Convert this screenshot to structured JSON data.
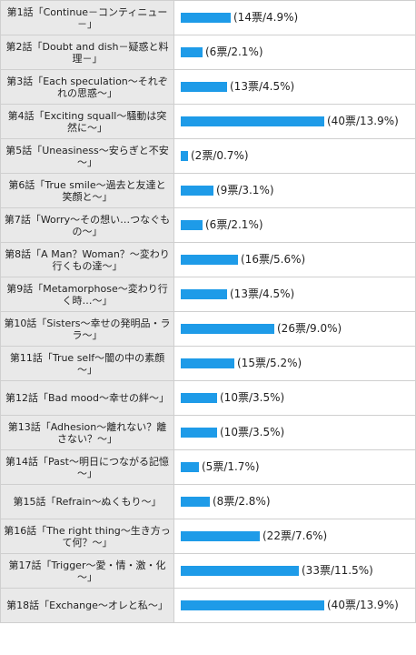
{
  "chart_data": {
    "type": "bar",
    "orientation": "horizontal",
    "title": "",
    "xlabel": "",
    "ylabel": "",
    "xlim": [
      0,
      40
    ],
    "grid": false,
    "legend": "none",
    "bar_color": "#1e9be8",
    "categories": [
      "第1話「Continue－コンティニュー－」",
      "第2話「Doubt and dish－疑惑と料理－」",
      "第3話「Each speculation～それぞれの思惑～」",
      "第4話「Exciting squall～騒動は突然に～」",
      "第5話「Uneasiness～安らぎと不安～」",
      "第6話「True smile～過去と友達と笑顔と～」",
      "第7話「Worry～その想い…つなぐもの～」",
      "第8話「A Man？Woman？～変わり行くもの達～」",
      "第9話「Metamorphose～変わり行く時…～」",
      "第10話「Sisters～幸せの発明品・ララ～」",
      "第11話「True self～闇の中の素顔～」",
      "第12話「Bad mood～幸せの絆～」",
      "第13話「Adhesion～離れない？離さない？～」",
      "第14話「Past～明日につながる記憶～」",
      "第15話「Refrain～ぬくもり～」",
      "第16話「The right thing～生き方って何？～」",
      "第17話「Trigger～愛・情・激・化～」",
      "第18話「Exchange～オレと私～」"
    ],
    "values": [
      14,
      6,
      13,
      40,
      2,
      9,
      6,
      16,
      13,
      26,
      15,
      10,
      10,
      5,
      8,
      22,
      33,
      40
    ],
    "value_labels": [
      "(14票/4.9%)",
      "(6票/2.1%)",
      "(13票/4.5%)",
      "(40票/13.9%)",
      "(2票/0.7%)",
      "(9票/3.1%)",
      "(6票/2.1%)",
      "(16票/5.6%)",
      "(13票/4.5%)",
      "(26票/9.0%)",
      "(15票/5.2%)",
      "(10票/3.5%)",
      "(10票/3.5%)",
      "(5票/1.7%)",
      "(8票/2.8%)",
      "(22票/7.6%)",
      "(33票/11.5%)",
      "(40票/13.9%)"
    ]
  }
}
